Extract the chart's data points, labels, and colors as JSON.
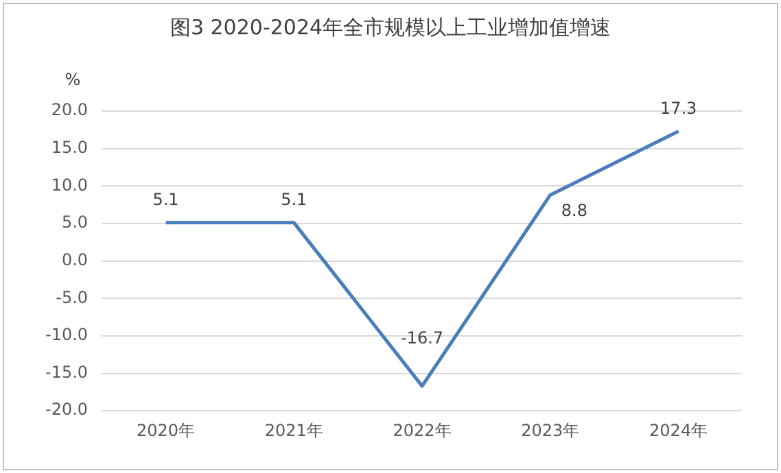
{
  "chart_data": {
    "type": "line",
    "title": "图3 2020-2024年全市规模以上工业增加值增速",
    "ylabel": "%",
    "categories": [
      "2020年",
      "2021年",
      "2022年",
      "2023年",
      "2024年"
    ],
    "series": [
      {
        "color": "#4a7ebb",
        "values": [
          5.1,
          5.1,
          -16.7,
          8.8,
          17.3
        ]
      }
    ],
    "ylim": [
      -20,
      20
    ],
    "yticks": [
      {
        "value": -20,
        "label": "-20.0"
      },
      {
        "value": -15,
        "label": "-15.0"
      },
      {
        "value": -10,
        "label": "-10.0"
      },
      {
        "value": -5,
        "label": "-5.0"
      },
      {
        "value": 0,
        "label": "0.0"
      },
      {
        "value": 5,
        "label": "5.0"
      },
      {
        "value": 10,
        "label": "10.0"
      },
      {
        "value": 15,
        "label": "15.0"
      },
      {
        "value": 20,
        "label": "20.0"
      }
    ],
    "grid": "y",
    "legend": false,
    "marker": "none",
    "line_style": "solid",
    "data_labels": true
  }
}
